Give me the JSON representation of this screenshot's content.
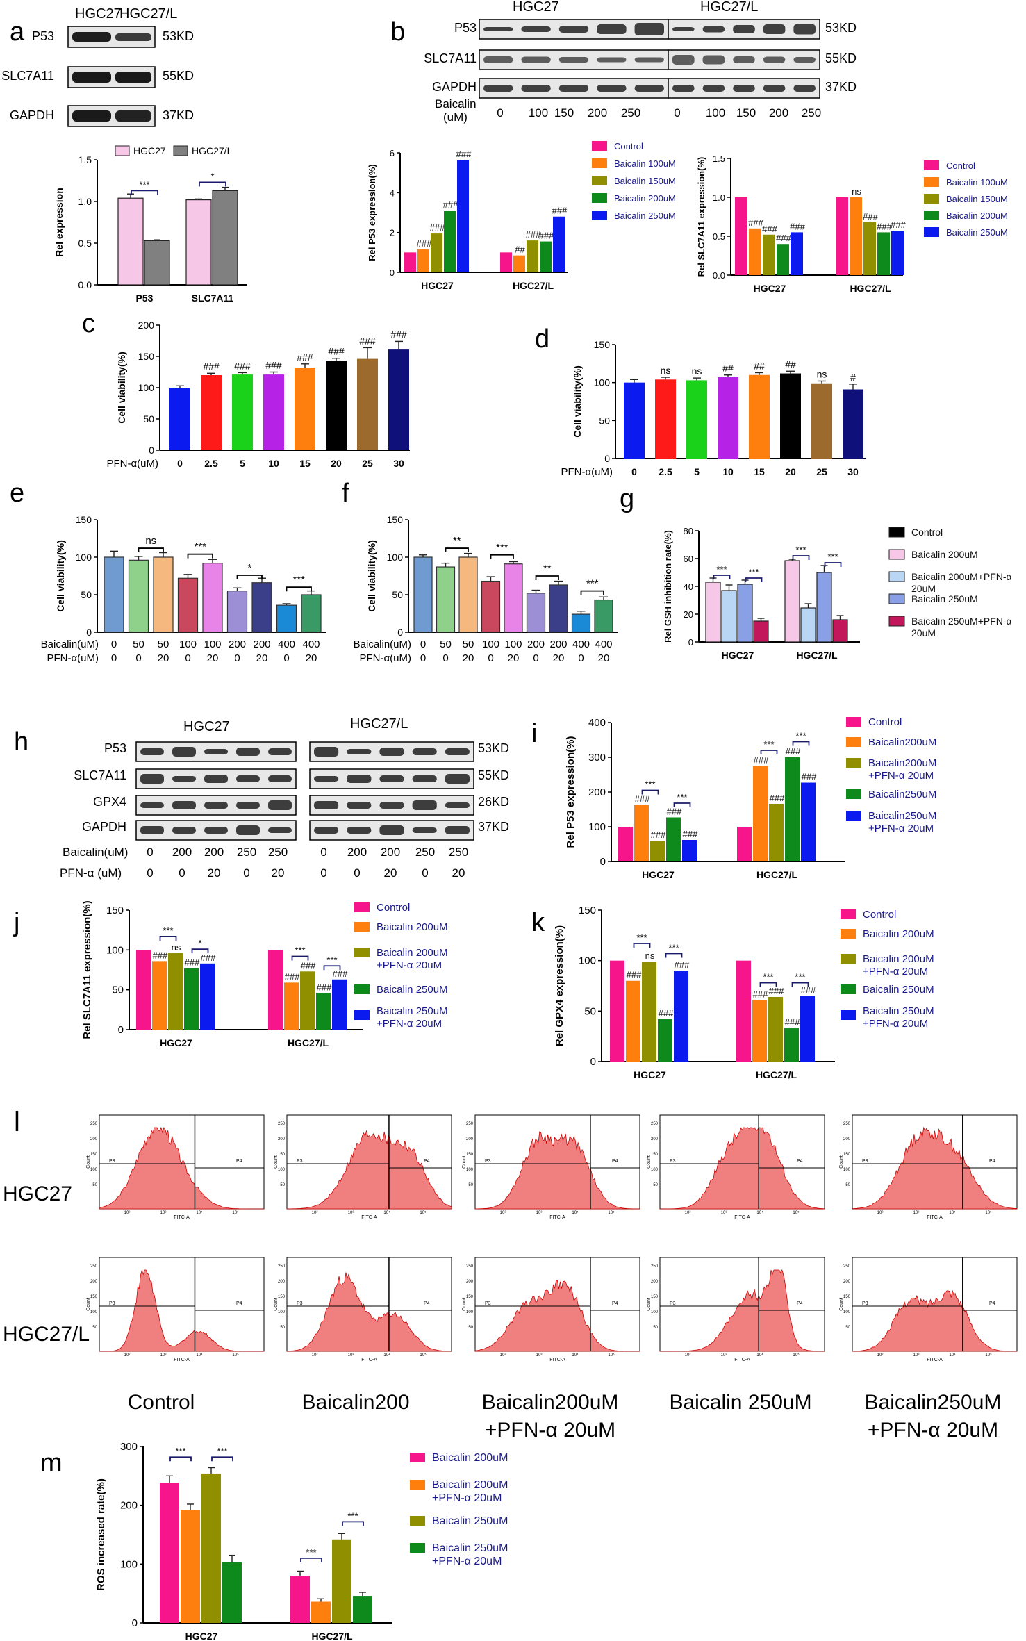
{
  "panels": {
    "a": "a",
    "b": "b",
    "c": "c",
    "d": "d",
    "e": "e",
    "f": "f",
    "g": "g",
    "h": "h",
    "i": "i",
    "j": "j",
    "k": "k",
    "l": "l",
    "m": "m"
  },
  "blots": {
    "a": {
      "groups": [
        "HGC27",
        "HGC27/L"
      ],
      "rows": [
        "P53",
        "SLC7A11",
        "GAPDH"
      ],
      "sizes": [
        "53KD",
        "55KD",
        "37KD"
      ]
    },
    "b": {
      "groups": [
        "HGC27",
        "HGC27/L"
      ],
      "rows": [
        "P53",
        "SLC7A11",
        "GAPDH"
      ],
      "sizes": [
        "53KD",
        "55KD",
        "37KD"
      ],
      "treatment_label_1": "Baicalin",
      "treatment_label_2": "(uM)",
      "doses": [
        "0",
        "100",
        "150",
        "200",
        "250"
      ]
    },
    "h": {
      "groups": [
        "HGC27",
        "HGC27/L"
      ],
      "rows": [
        "P53",
        "SLC7A11",
        "GPX4",
        "GAPDH"
      ],
      "sizes": [
        "53KD",
        "55KD",
        "26KD",
        "37KD"
      ],
      "row_label_1": "Baicalin(uM)",
      "row_label_2": "PFN-α  (uM)",
      "baicalin": [
        "0",
        "200",
        "200",
        "250",
        "250"
      ],
      "pfn": [
        "0",
        "0",
        "20",
        "0",
        "20"
      ]
    }
  },
  "flow": {
    "row_labels": [
      "HGC27",
      "HGC27/L"
    ],
    "col_labels": [
      [
        "Control"
      ],
      [
        "Baicalin200"
      ],
      [
        "Baicalin200uM",
        "+PFN-α 20uM"
      ],
      [
        "Baicalin 250uM"
      ],
      [
        "Baicalin250uM",
        "+PFN-α 20uM"
      ]
    ],
    "axis": {
      "ylabel": "Count",
      "xlabel": "FITC-A",
      "gate_left": "P3",
      "gate_right": "P4",
      "yticks": [
        "250",
        "200",
        "150",
        "100",
        "50"
      ],
      "xticks": [
        "10²",
        "10³",
        "10⁴",
        "10⁵"
      ]
    }
  },
  "colors": {
    "pink": "#f7158c",
    "orange": "#ff7f0e",
    "olive": "#8f8f00",
    "green": "#0e8a1d",
    "blue": "#0b1bf0",
    "lightpink": "#f7c7e8",
    "gray": "#808080",
    "control_black": "#000000",
    "red": "#ff1a1a",
    "lime": "#19d219",
    "purple": "#b622e6",
    "darkblue": "#10107a",
    "brown": "#9b6a2c",
    "steel": "#6f9bd1",
    "lightgreen": "#8fd18a",
    "paleorange": "#f5b97f",
    "darkred": "#c9485d",
    "violet": "#e884e8",
    "lavender": "#9c8fd6",
    "navy": "#3b3f8a",
    "cyan": "#1a8ad6",
    "teal": "#3a9a66",
    "lightblue": "#b9d6f5",
    "periwinkle": "#8aa0e6",
    "crimson": "#c2185b",
    "hist_fill": "#f08080",
    "hist_line": "#cc0000"
  },
  "chart_data": [
    {
      "id": "a",
      "type": "bar",
      "categories": [
        "P53",
        "SLC7A11"
      ],
      "series": [
        {
          "name": "HGC27",
          "values": [
            1.04,
            1.02
          ]
        },
        {
          "name": "HGC27/L",
          "values": [
            0.53,
            1.13
          ]
        }
      ],
      "errors": [
        [
          0.05,
          0.01
        ],
        [
          0.01,
          0.04
        ]
      ],
      "ylabel": "Rel expression",
      "ylim": [
        0,
        1.5
      ],
      "yticks": [
        "0.0",
        "0.5",
        "1.0",
        "1.5"
      ],
      "legend": [
        "HGC27",
        "HGC27/L"
      ],
      "sig": [
        {
          "label": "***",
          "cat": 0,
          "s1": 0,
          "s2": 1,
          "y": 1.13
        },
        {
          "label": "*",
          "cat": 1,
          "s1": 0,
          "s2": 1,
          "y": 1.23
        }
      ],
      "marks": []
    },
    {
      "id": "b1",
      "type": "bar",
      "categories": [
        "HGC27",
        "HGC27/L"
      ],
      "series": [
        {
          "name": "Control",
          "values": [
            1.0,
            1.0
          ]
        },
        {
          "name": "Baicalin 100uM",
          "values": [
            1.15,
            0.85
          ]
        },
        {
          "name": "Baicalin 150uM",
          "values": [
            1.95,
            1.6
          ]
        },
        {
          "name": "Baicalin 200uM",
          "values": [
            3.1,
            1.55
          ]
        },
        {
          "name": "Baicalin 250uM",
          "values": [
            5.65,
            2.8
          ]
        }
      ],
      "ylabel": "Rel P53 expression(%)",
      "ylim": [
        0,
        6
      ],
      "yticks": [
        "0",
        "2",
        "4",
        "6"
      ],
      "legend": [
        "Control",
        "Baicalin 100uM",
        "Baicalin 150uM",
        "Baicalin 200uM",
        "Baicalin 250uM"
      ],
      "marks": [
        [
          "",
          "###",
          "###",
          "###",
          "###"
        ],
        [
          "",
          "##",
          "###",
          "###",
          "###"
        ]
      ],
      "sig": []
    },
    {
      "id": "b2",
      "type": "bar",
      "categories": [
        "HGC27",
        "HGC27/L"
      ],
      "series": [
        {
          "name": "Control",
          "values": [
            1.0,
            1.0
          ]
        },
        {
          "name": "Baicalin 100uM",
          "values": [
            0.6,
            1.0
          ]
        },
        {
          "name": "Baicalin 150uM",
          "values": [
            0.52,
            0.68
          ]
        },
        {
          "name": "Baicalin 200uM",
          "values": [
            0.4,
            0.55
          ]
        },
        {
          "name": "Baicalin 250uM",
          "values": [
            0.55,
            0.57
          ]
        }
      ],
      "ylabel": "Rel SLC7A11 expression(%)",
      "ylim": [
        0,
        1.5
      ],
      "yticks": [
        "0.0",
        "0.5",
        "1.0",
        "1.5"
      ],
      "legend": [
        "Control",
        "Baicalin 100uM",
        "Baicalin 150uM",
        "Baicalin 200uM",
        "Baicalin 250uM"
      ],
      "marks": [
        [
          "",
          "###",
          "###",
          "###",
          "###"
        ],
        [
          "",
          "ns",
          "###",
          "###",
          "###"
        ]
      ],
      "sig": []
    },
    {
      "id": "c",
      "type": "bar",
      "categories": [
        "0",
        "2.5",
        "5",
        "10",
        "15",
        "20",
        "25",
        "30"
      ],
      "values": [
        100,
        120,
        121,
        121,
        132,
        143,
        146,
        161
      ],
      "errors": [
        3,
        3,
        3,
        4,
        6,
        4,
        18,
        13
      ],
      "marks": [
        "",
        "###",
        "###",
        "###",
        "###",
        "###",
        "###",
        "###"
      ],
      "ylabel": "Cell viability(%)",
      "xlabel": "PFN-α(uM)",
      "ylim": [
        0,
        200
      ],
      "yticks": [
        "0",
        "50",
        "100",
        "150",
        "200"
      ]
    },
    {
      "id": "d",
      "type": "bar",
      "categories": [
        "0",
        "2.5",
        "5",
        "10",
        "15",
        "20",
        "25",
        "30"
      ],
      "values": [
        100,
        104,
        103,
        107,
        110,
        112,
        99,
        91
      ],
      "errors": [
        4,
        3,
        3,
        3,
        3,
        3,
        3,
        7
      ],
      "marks": [
        "",
        "ns",
        "ns",
        "##",
        "##",
        "##",
        "ns",
        "#"
      ],
      "ylabel": "Cell viability(%)",
      "xlabel": "PFN-α(uM)",
      "ylim": [
        0,
        150
      ],
      "yticks": [
        "0",
        "50",
        "100",
        "150"
      ]
    },
    {
      "id": "e",
      "type": "bar",
      "categories": [
        "0|0",
        "50|0",
        "50|20",
        "100|0",
        "100|20",
        "200|0",
        "200|20",
        "400|0",
        "400|20"
      ],
      "baicalin": [
        "0",
        "50",
        "50",
        "100",
        "100",
        "200",
        "200",
        "400",
        "400"
      ],
      "pfn": [
        "0",
        "0",
        "20",
        "0",
        "20",
        "0",
        "20",
        "0",
        "20"
      ],
      "values": [
        100,
        96,
        100,
        72,
        92,
        55,
        66,
        36,
        50
      ],
      "errors": [
        8,
        5,
        6,
        5,
        5,
        4,
        6,
        2,
        5
      ],
      "ylabel": "Cell viability(%)",
      "xlabel1": "Baicalin(uM)",
      "xlabel2": "PFN-α(uM)",
      "ylim": [
        0,
        150
      ],
      "yticks": [
        "0",
        "50",
        "100",
        "150"
      ],
      "sig": [
        {
          "label": "ns",
          "i1": 1,
          "i2": 2,
          "y": 112
        },
        {
          "label": "***",
          "i1": 3,
          "i2": 4,
          "y": 104
        },
        {
          "label": "*",
          "i1": 5,
          "i2": 6,
          "y": 76
        },
        {
          "label": "***",
          "i1": 7,
          "i2": 8,
          "y": 60
        }
      ]
    },
    {
      "id": "f",
      "type": "bar",
      "categories": [
        "0|0",
        "50|0",
        "50|20",
        "100|0",
        "100|20",
        "200|0",
        "200|20",
        "400|0",
        "400|20"
      ],
      "baicalin": [
        "0",
        "50",
        "50",
        "100",
        "100",
        "200",
        "200",
        "400",
        "400"
      ],
      "pfn": [
        "0",
        "0",
        "20",
        "0",
        "20",
        "0",
        "20",
        "0",
        "20"
      ],
      "values": [
        100,
        87,
        100,
        68,
        91,
        52,
        63,
        24,
        43
      ],
      "errors": [
        3,
        5,
        5,
        6,
        3,
        4,
        5,
        4,
        4
      ],
      "ylabel": "Cell viability(%)",
      "xlabel1": "Baicalin(uM)",
      "xlabel2": "PFN-α(uM)",
      "ylim": [
        0,
        150
      ],
      "yticks": [
        "0",
        "50",
        "100",
        "150"
      ],
      "sig": [
        {
          "label": "**",
          "i1": 1,
          "i2": 2,
          "y": 112
        },
        {
          "label": "***",
          "i1": 3,
          "i2": 4,
          "y": 103
        },
        {
          "label": "**",
          "i1": 5,
          "i2": 6,
          "y": 75
        },
        {
          "label": "***",
          "i1": 7,
          "i2": 8,
          "y": 55
        }
      ]
    },
    {
      "id": "g",
      "type": "bar",
      "categories": [
        "HGC27",
        "HGC27/L"
      ],
      "series": [
        {
          "name": "Baicalin 200uM",
          "values": [
            43,
            58.5
          ]
        },
        {
          "name": "Baicalin 200uM+PFN-α 20uM",
          "values": [
            37,
            24.5
          ]
        },
        {
          "name": "Baicalin 250uM",
          "values": [
            41.5,
            50
          ]
        },
        {
          "name": "Baicalin 250uM+PFN-α 20uM",
          "values": [
            15,
            16
          ]
        }
      ],
      "errors": [
        [
          3,
          1
        ],
        [
          4,
          3
        ],
        [
          3,
          5
        ],
        [
          2,
          3
        ]
      ],
      "ylabel": "Rel GSH inhibition rate(%)",
      "ylim": [
        0,
        80
      ],
      "yticks": [
        "0",
        "20",
        "40",
        "60",
        "80"
      ],
      "legend": [
        "Control",
        "Baicalin 200uM",
        "Baicalin 200uM+PFN-α 20uM",
        "Baicalin 250uM",
        "Baicalin 250uM+PFN-α 20uM"
      ],
      "sig": [
        {
          "label": "***",
          "cat": 0,
          "s1": 0,
          "s2": 1,
          "y": 48
        },
        {
          "label": "***",
          "cat": 0,
          "s1": 2,
          "s2": 3,
          "y": 46
        },
        {
          "label": "***",
          "cat": 1,
          "s1": 0,
          "s2": 1,
          "y": 62
        },
        {
          "label": "***",
          "cat": 1,
          "s1": 2,
          "s2": 3,
          "y": 57
        }
      ],
      "marks": []
    },
    {
      "id": "i",
      "type": "bar",
      "categories": [
        "HGC27",
        "HGC27/L"
      ],
      "series": [
        {
          "name": "Control",
          "values": [
            100,
            100
          ]
        },
        {
          "name": "Baicalin200uM",
          "values": [
            163,
            275
          ]
        },
        {
          "name": "Baicalin200uM+PFN-α 20uM",
          "values": [
            60,
            166
          ]
        },
        {
          "name": "Baicalin250uM",
          "values": [
            127,
            300
          ]
        },
        {
          "name": "Baicalin250uM+PFN-α 20uM",
          "values": [
            62,
            227
          ]
        }
      ],
      "ylabel": "Rel P53 expression(%)",
      "ylim": [
        0,
        400
      ],
      "yticks": [
        "0",
        "100",
        "200",
        "300",
        "400"
      ],
      "legend": [
        "Control",
        "Baicalin200uM",
        "Baicalin200uM+PFN-α 20uM",
        "Baicalin250uM",
        "Baicalin250uM+PFN-α 20uM"
      ],
      "marks": [
        [
          "",
          "###",
          "###",
          "###",
          "###"
        ],
        [
          "",
          "###",
          "###",
          "###",
          "###"
        ]
      ],
      "sig": [
        {
          "label": "***",
          "cat": 0,
          "s1": 1,
          "s2": 2,
          "y": 205
        },
        {
          "label": "***",
          "cat": 0,
          "s1": 3,
          "s2": 4,
          "y": 168
        },
        {
          "label": "***",
          "cat": 1,
          "s1": 1,
          "s2": 2,
          "y": 320
        },
        {
          "label": "***",
          "cat": 1,
          "s1": 3,
          "s2": 4,
          "y": 345
        }
      ]
    },
    {
      "id": "j",
      "type": "bar",
      "categories": [
        "HGC27",
        "HGC27/L"
      ],
      "series": [
        {
          "name": "Control",
          "values": [
            100,
            100
          ]
        },
        {
          "name": "Baicalin 200uM",
          "values": [
            86,
            59
          ]
        },
        {
          "name": "Baicalin 200uM+PFN-α 20uM",
          "values": [
            96,
            73
          ]
        },
        {
          "name": "Baicalin 250uM",
          "values": [
            77,
            46
          ]
        },
        {
          "name": "Baicalin 250uM+PFN-α 20uM",
          "values": [
            83,
            63
          ]
        }
      ],
      "ylabel": "Rel SLC7A11 expression(%)",
      "ylim": [
        0,
        150
      ],
      "yticks": [
        "0",
        "50",
        "100",
        "150"
      ],
      "legend": [
        "Control",
        "Baicalin 200uM",
        "Baicalin 200uM+PFN-α 20uM",
        "Baicalin 250uM",
        "Baicalin 250uM+PFN-α 20uM"
      ],
      "marks": [
        [
          "",
          "###",
          "ns",
          "###",
          "###"
        ],
        [
          "",
          "###",
          "###",
          "###",
          "###"
        ]
      ],
      "sig": [
        {
          "label": "***",
          "cat": 0,
          "s1": 1,
          "s2": 2,
          "y": 117
        },
        {
          "label": "*",
          "cat": 0,
          "s1": 3,
          "s2": 4,
          "y": 101
        },
        {
          "label": "***",
          "cat": 1,
          "s1": 1,
          "s2": 2,
          "y": 92
        },
        {
          "label": "***",
          "cat": 1,
          "s1": 3,
          "s2": 4,
          "y": 80
        }
      ]
    },
    {
      "id": "k",
      "type": "bar",
      "categories": [
        "HGC27",
        "HGC27/L"
      ],
      "series": [
        {
          "name": "Control",
          "values": [
            100,
            100
          ]
        },
        {
          "name": "Baicalin 200uM",
          "values": [
            80,
            61
          ]
        },
        {
          "name": "Baicalin 200uM+PFN-α 20uM",
          "values": [
            99,
            64
          ]
        },
        {
          "name": "Baicalin 250uM",
          "values": [
            42,
            33
          ]
        },
        {
          "name": "Baicalin 250uM+PFN-α 20uM",
          "values": [
            90,
            65
          ]
        }
      ],
      "ylabel": "Rel GPX4 expression(%)",
      "ylim": [
        0,
        150
      ],
      "yticks": [
        "0",
        "50",
        "100",
        "150"
      ],
      "legend": [
        "Control",
        "Baicalin 200uM",
        "Baicalin 200uM+PFN-α 20uM",
        "Baicalin 250uM",
        "Baicalin 250uM+PFN-α 20uM"
      ],
      "marks": [
        [
          "",
          "###",
          "ns",
          "###",
          "###"
        ],
        [
          "",
          "###",
          "###",
          "###",
          "###"
        ]
      ],
      "sig": [
        {
          "label": "***",
          "cat": 0,
          "s1": 1,
          "s2": 2,
          "y": 117
        },
        {
          "label": "***",
          "cat": 0,
          "s1": 3,
          "s2": 4,
          "y": 107
        },
        {
          "label": "***",
          "cat": 1,
          "s1": 1,
          "s2": 2,
          "y": 78
        },
        {
          "label": "***",
          "cat": 1,
          "s1": 3,
          "s2": 4,
          "y": 78
        }
      ]
    },
    {
      "id": "m",
      "type": "bar",
      "categories": [
        "HGC27",
        "HGC27/L"
      ],
      "series": [
        {
          "name": "Baicalin 200uM",
          "values": [
            238,
            80
          ]
        },
        {
          "name": "Baicalin 200uM+PFN-α 20uM",
          "values": [
            192,
            36
          ]
        },
        {
          "name": "Baicalin 250uM",
          "values": [
            254,
            142
          ]
        },
        {
          "name": "Baicalin 250uM+PFN-α 20uM",
          "values": [
            103,
            46
          ]
        }
      ],
      "errors": [
        [
          12,
          8
        ],
        [
          10,
          5
        ],
        [
          10,
          10
        ],
        [
          12,
          6
        ]
      ],
      "ylabel": "ROS increased rate(%)",
      "ylim": [
        0,
        300
      ],
      "yticks": [
        "0",
        "100",
        "200",
        "300"
      ],
      "legend": [
        "Baicalin 200uM",
        "Baicalin 200uM+PFN-α 20uM",
        "Baicalin 250uM",
        "Baicalin 250uM+PFN-α 20uM"
      ],
      "sig": [
        {
          "label": "***",
          "cat": 0,
          "s1": 0,
          "s2": 1,
          "y": 282
        },
        {
          "label": "***",
          "cat": 0,
          "s1": 2,
          "s2": 3,
          "y": 282
        },
        {
          "label": "***",
          "cat": 1,
          "s1": 0,
          "s2": 1,
          "y": 110
        },
        {
          "label": "***",
          "cat": 1,
          "s1": 2,
          "s2": 3,
          "y": 172
        }
      ],
      "marks": []
    }
  ]
}
